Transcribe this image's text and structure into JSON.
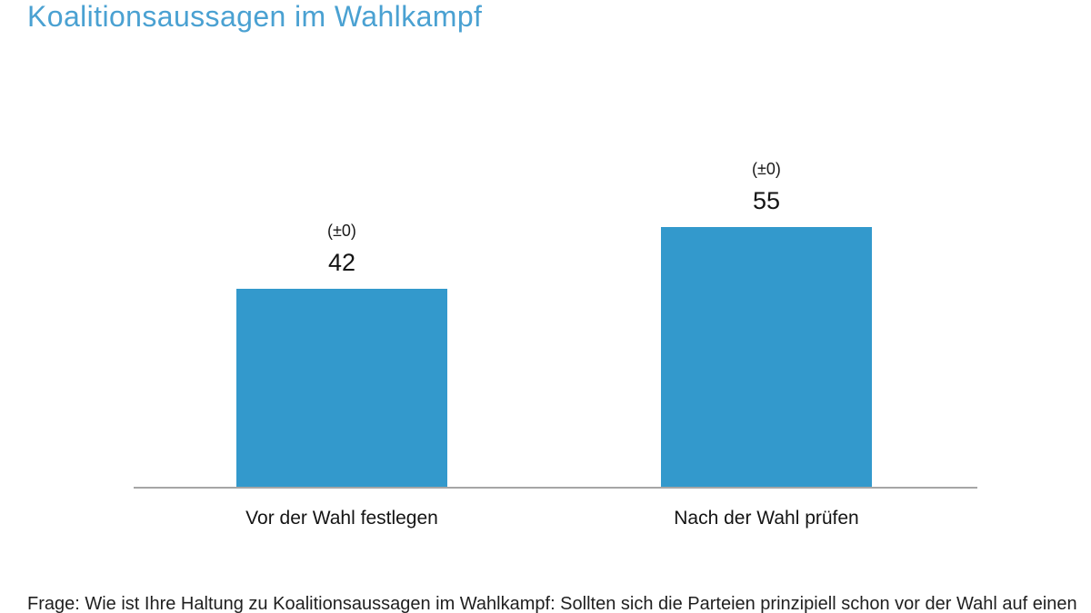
{
  "header": {
    "title": "Koalitionsaussagen im Wahlkampf",
    "title_color": "#4aa1d2"
  },
  "chart_data": {
    "type": "bar",
    "title": "Koalitionsaussagen im Wahlkampf",
    "categories": [
      "Vor der Wahl festlegen",
      "Nach der Wahl prüfen"
    ],
    "values": [
      42,
      55
    ],
    "change_labels": [
      "(±0)",
      "(±0)"
    ],
    "xlabel": "",
    "ylabel": "",
    "ylim": [
      0,
      60
    ],
    "grid": false,
    "legend": false,
    "value_labels_shown": true,
    "bar_color": "#3399cc",
    "axis_line_color": "#a6a6a6"
  },
  "footer": {
    "question": "Frage: Wie ist Ihre Haltung zu Koalitionsaussagen im Wahlkampf: Sollten sich die Parteien prinzipiell schon vor der Wahl auf einen"
  }
}
